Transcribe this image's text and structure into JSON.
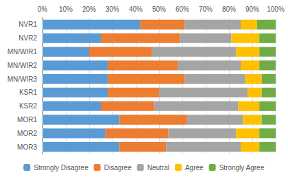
{
  "chart_data": {
    "type": "bar",
    "orientation": "horizontal",
    "stacked": true,
    "categories": [
      "NVR1",
      "NVR2",
      "MN/WIR1",
      "MN/WIR2",
      "MN/WIR3",
      "KSR1",
      "KSR2",
      "MOR1",
      "MOR2",
      "MOR3"
    ],
    "series": [
      {
        "name": "Strongly Disagree",
        "color": "#5B9BD5",
        "values": [
          42,
          25,
          20,
          28,
          28,
          28,
          25,
          33,
          27,
          33
        ]
      },
      {
        "name": "Disagree",
        "color": "#ED7D31",
        "values": [
          19,
          34,
          27,
          30,
          33,
          22,
          23,
          29,
          27,
          20
        ]
      },
      {
        "name": "Neutral",
        "color": "#A5A5A5",
        "values": [
          24,
          22,
          36,
          27,
          26,
          38,
          36,
          24,
          29,
          32
        ]
      },
      {
        "name": "Agree",
        "color": "#FFC000",
        "values": [
          7,
          12,
          10,
          8,
          7,
          6,
          9,
          8,
          10,
          8
        ]
      },
      {
        "name": "Strongly Agree",
        "color": "#70AD47",
        "values": [
          8,
          7,
          7,
          7,
          6,
          6,
          7,
          6,
          7,
          7
        ]
      }
    ],
    "xlim": [
      0,
      100
    ],
    "xticks": [
      {
        "value": 0,
        "label": "0%"
      },
      {
        "value": 10,
        "label": "10%"
      },
      {
        "value": 20,
        "label": "20%"
      },
      {
        "value": 30,
        "label": "30%"
      },
      {
        "value": 40,
        "label": "40%"
      },
      {
        "value": 50,
        "label": "50%"
      },
      {
        "value": 60,
        "label": "60%"
      },
      {
        "value": 70,
        "label": "70%"
      },
      {
        "value": 80,
        "label": "80%"
      },
      {
        "value": 90,
        "label": "90%"
      },
      {
        "value": 100,
        "label": "100%"
      }
    ],
    "grid": true,
    "legend": "bottom"
  }
}
